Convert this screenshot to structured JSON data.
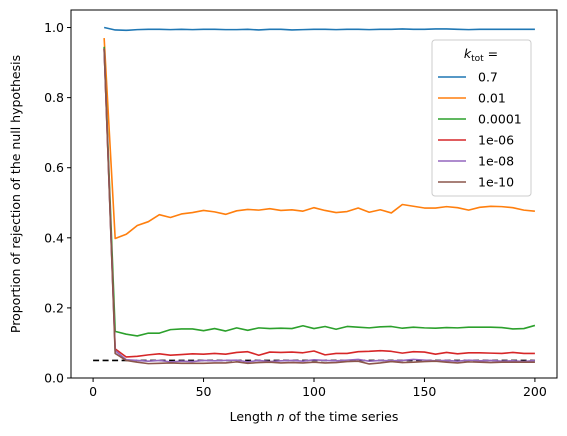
{
  "chart_data": {
    "type": "line",
    "xlabel_prefix": "Length ",
    "xlabel_var": "n",
    "xlabel_suffix": " of the time series",
    "ylabel": "Proportion of rejection of the null hypothesis",
    "xlim": [
      -10,
      210
    ],
    "ylim": [
      0.0,
      1.05
    ],
    "xticks": [
      0,
      50,
      100,
      150,
      200
    ],
    "yticks": [
      0.0,
      0.2,
      0.4,
      0.6,
      0.8,
      1.0
    ],
    "xtick_labels": [
      "0",
      "50",
      "100",
      "150",
      "200"
    ],
    "ytick_labels": [
      "0.0",
      "0.2",
      "0.4",
      "0.6",
      "0.8",
      "1.0"
    ],
    "legend": {
      "title_k": "k",
      "title_sub": "tot",
      "title_eq": " =",
      "placement": "upper right"
    },
    "grid": false,
    "reference_line": {
      "y": 0.05,
      "x_start": 0,
      "x_end": 200,
      "style": "dashed",
      "color": "#000000"
    },
    "x": [
      5,
      10,
      15,
      20,
      25,
      30,
      35,
      40,
      45,
      50,
      55,
      60,
      65,
      70,
      75,
      80,
      85,
      90,
      95,
      100,
      105,
      110,
      115,
      120,
      125,
      130,
      135,
      140,
      145,
      150,
      155,
      160,
      165,
      170,
      175,
      180,
      185,
      190,
      195,
      200
    ],
    "series": [
      {
        "name": "0.7",
        "color": "#1f77b4",
        "values": [
          1.0,
          0.993,
          0.992,
          0.994,
          0.995,
          0.995,
          0.994,
          0.995,
          0.994,
          0.995,
          0.995,
          0.994,
          0.994,
          0.995,
          0.993,
          0.995,
          0.995,
          0.993,
          0.994,
          0.995,
          0.995,
          0.994,
          0.995,
          0.995,
          0.994,
          0.995,
          0.995,
          0.996,
          0.995,
          0.995,
          0.996,
          0.996,
          0.995,
          0.994,
          0.995,
          0.995,
          0.995,
          0.995,
          0.995,
          0.995
        ]
      },
      {
        "name": "0.01",
        "color": "#ff7f0e",
        "values": [
          0.97,
          0.398,
          0.41,
          0.435,
          0.446,
          0.466,
          0.458,
          0.468,
          0.472,
          0.478,
          0.474,
          0.467,
          0.477,
          0.481,
          0.479,
          0.483,
          0.478,
          0.48,
          0.476,
          0.486,
          0.478,
          0.472,
          0.475,
          0.485,
          0.473,
          0.48,
          0.471,
          0.495,
          0.49,
          0.485,
          0.485,
          0.489,
          0.486,
          0.479,
          0.487,
          0.49,
          0.489,
          0.486,
          0.479,
          0.476
        ]
      },
      {
        "name": "0.0001",
        "color": "#2ca02c",
        "values": [
          0.945,
          0.133,
          0.125,
          0.12,
          0.128,
          0.128,
          0.138,
          0.14,
          0.14,
          0.135,
          0.141,
          0.134,
          0.143,
          0.136,
          0.143,
          0.141,
          0.142,
          0.141,
          0.149,
          0.141,
          0.147,
          0.139,
          0.147,
          0.145,
          0.143,
          0.146,
          0.147,
          0.142,
          0.145,
          0.143,
          0.142,
          0.144,
          0.143,
          0.145,
          0.145,
          0.145,
          0.144,
          0.14,
          0.141,
          0.15
        ]
      },
      {
        "name": "1e-06",
        "color": "#d62728",
        "values": [
          0.94,
          0.083,
          0.06,
          0.062,
          0.066,
          0.069,
          0.065,
          0.067,
          0.069,
          0.068,
          0.07,
          0.068,
          0.073,
          0.075,
          0.065,
          0.074,
          0.073,
          0.074,
          0.072,
          0.077,
          0.066,
          0.07,
          0.07,
          0.075,
          0.076,
          0.078,
          0.076,
          0.071,
          0.075,
          0.074,
          0.068,
          0.073,
          0.069,
          0.072,
          0.072,
          0.071,
          0.07,
          0.073,
          0.07,
          0.07
        ]
      },
      {
        "name": "1e-08",
        "color": "#9467bd",
        "values": [
          0.94,
          0.078,
          0.052,
          0.05,
          0.048,
          0.05,
          0.046,
          0.048,
          0.047,
          0.05,
          0.049,
          0.05,
          0.051,
          0.046,
          0.05,
          0.047,
          0.049,
          0.05,
          0.048,
          0.052,
          0.05,
          0.049,
          0.051,
          0.053,
          0.048,
          0.05,
          0.049,
          0.05,
          0.053,
          0.051,
          0.049,
          0.05,
          0.048,
          0.051,
          0.049,
          0.05,
          0.048,
          0.049,
          0.047,
          0.05
        ]
      },
      {
        "name": "1e-10",
        "color": "#8c564b",
        "values": [
          0.94,
          0.07,
          0.05,
          0.045,
          0.041,
          0.042,
          0.043,
          0.042,
          0.042,
          0.042,
          0.043,
          0.043,
          0.046,
          0.042,
          0.044,
          0.045,
          0.043,
          0.044,
          0.043,
          0.045,
          0.043,
          0.044,
          0.047,
          0.048,
          0.04,
          0.043,
          0.047,
          0.044,
          0.045,
          0.047,
          0.048,
          0.045,
          0.043,
          0.046,
          0.045,
          0.044,
          0.045,
          0.045,
          0.045,
          0.045
        ]
      }
    ]
  }
}
